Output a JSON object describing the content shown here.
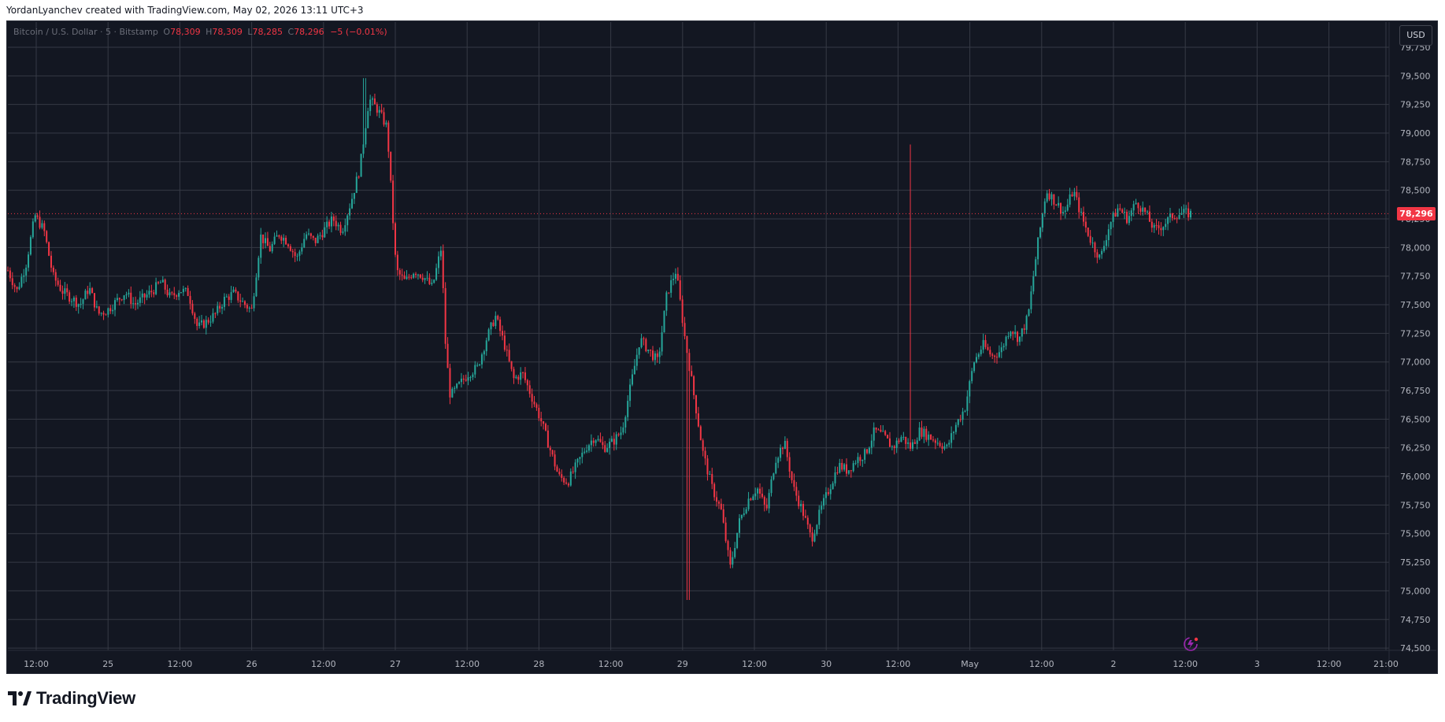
{
  "attribution": "YordanLyanchev created with TradingView.com, May 02, 2026 13:11 UTC+3",
  "legend": {
    "symbol": "Bitcoin / U.S. Dollar · 5 · Bitstamp",
    "o_label": "O",
    "o_value": "78,309",
    "h_label": "H",
    "h_value": "78,309",
    "l_label": "L",
    "l_value": "78,285",
    "c_label": "C",
    "c_value": "78,296",
    "change": "−5 (−0.01%)"
  },
  "currency": "USD",
  "last_price": "78,296",
  "brand": "TradingView",
  "colors": {
    "background": "#131722",
    "grid": "#363a45",
    "up": "#26a69a",
    "down": "#f23645",
    "axis_text": "#b2b5be"
  },
  "icons": [
    "tradingview-logo-icon",
    "replay-icon"
  ],
  "chart_data": {
    "type": "candlestick",
    "title": "Bitcoin / U.S. Dollar · 5 · Bitstamp",
    "interval_minutes": 5,
    "y_axis": {
      "ticks": [
        74500,
        74750,
        75000,
        75250,
        75500,
        75750,
        76000,
        76250,
        76500,
        76750,
        77000,
        77250,
        77500,
        77750,
        78000,
        78250,
        78500,
        78750,
        79000,
        79250,
        79500,
        79750
      ],
      "tick_labels": [
        "74,500",
        "74,750",
        "75,000",
        "75,250",
        "75,500",
        "75,750",
        "76,000",
        "76,250",
        "76,500",
        "76,750",
        "77,000",
        "77,250",
        "77,500",
        "77,750",
        "78,000",
        "78,250",
        "78,500",
        "78,750",
        "79,000",
        "79,250",
        "79,500",
        "79,750"
      ],
      "range": [
        74480,
        79970
      ]
    },
    "x_axis": {
      "tick_labels": [
        "12:00",
        "25",
        "12:00",
        "26",
        "12:00",
        "27",
        "12:00",
        "28",
        "12:00",
        "29",
        "12:00",
        "30",
        "12:00",
        "May",
        "12:00",
        "2",
        "12:00",
        "3",
        "12:00",
        "21:00"
      ],
      "range_label": "Apr 24 08:00 – May 3 22:00"
    },
    "last_price": 78296,
    "grid": true,
    "price_path": [
      [
        0,
        77800
      ],
      [
        2,
        77620
      ],
      [
        4,
        77850
      ],
      [
        6,
        78280
      ],
      [
        8,
        78150
      ],
      [
        10,
        77750
      ],
      [
        12,
        77620
      ],
      [
        14,
        77560
      ],
      [
        16,
        77500
      ],
      [
        18,
        77650
      ],
      [
        20,
        77420
      ],
      [
        22,
        77450
      ],
      [
        24,
        77530
      ],
      [
        26,
        77610
      ],
      [
        28,
        77500
      ],
      [
        30,
        77560
      ],
      [
        32,
        77620
      ],
      [
        34,
        77700
      ],
      [
        36,
        77560
      ],
      [
        38,
        77630
      ],
      [
        40,
        77600
      ],
      [
        42,
        77300
      ],
      [
        44,
        77350
      ],
      [
        46,
        77420
      ],
      [
        48,
        77550
      ],
      [
        50,
        77600
      ],
      [
        52,
        77520
      ],
      [
        54,
        77450
      ],
      [
        56,
        78100
      ],
      [
        58,
        77980
      ],
      [
        60,
        78120
      ],
      [
        62,
        78050
      ],
      [
        64,
        77900
      ],
      [
        66,
        78120
      ],
      [
        68,
        78050
      ],
      [
        70,
        78150
      ],
      [
        72,
        78250
      ],
      [
        74,
        78150
      ],
      [
        76,
        78400
      ],
      [
        78,
        78700
      ],
      [
        80,
        79300
      ],
      [
        82,
        79200
      ],
      [
        84,
        79050
      ],
      [
        86,
        77800
      ],
      [
        88,
        77700
      ],
      [
        90,
        77800
      ],
      [
        92,
        77750
      ],
      [
        94,
        77650
      ],
      [
        96,
        78000
      ],
      [
        97,
        77100
      ],
      [
        98,
        76700
      ],
      [
        100,
        76800
      ],
      [
        102,
        76900
      ],
      [
        104,
        76950
      ],
      [
        106,
        77200
      ],
      [
        108,
        77400
      ],
      [
        110,
        77150
      ],
      [
        112,
        76850
      ],
      [
        114,
        76900
      ],
      [
        116,
        76700
      ],
      [
        118,
        76500
      ],
      [
        120,
        76250
      ],
      [
        122,
        76000
      ],
      [
        124,
        75950
      ],
      [
        126,
        76100
      ],
      [
        128,
        76250
      ],
      [
        130,
        76350
      ],
      [
        132,
        76250
      ],
      [
        134,
        76300
      ],
      [
        136,
        76400
      ],
      [
        138,
        76800
      ],
      [
        140,
        77200
      ],
      [
        142,
        77100
      ],
      [
        144,
        77000
      ],
      [
        146,
        77600
      ],
      [
        148,
        77800
      ],
      [
        150,
        77200
      ],
      [
        152,
        76700
      ],
      [
        154,
        76200
      ],
      [
        156,
        75900
      ],
      [
        158,
        75700
      ],
      [
        160,
        75200
      ],
      [
        162,
        75600
      ],
      [
        164,
        75800
      ],
      [
        166,
        75900
      ],
      [
        168,
        75700
      ],
      [
        170,
        76150
      ],
      [
        172,
        76300
      ],
      [
        174,
        75900
      ],
      [
        176,
        75700
      ],
      [
        178,
        75450
      ],
      [
        180,
        75700
      ],
      [
        182,
        75900
      ],
      [
        184,
        76100
      ],
      [
        186,
        76050
      ],
      [
        188,
        76150
      ],
      [
        190,
        76200
      ],
      [
        192,
        76400
      ],
      [
        194,
        76350
      ],
      [
        196,
        76250
      ],
      [
        198,
        76350
      ],
      [
        200,
        76250
      ],
      [
        202,
        76400
      ],
      [
        204,
        76350
      ],
      [
        206,
        76300
      ],
      [
        208,
        76250
      ],
      [
        210,
        76450
      ],
      [
        212,
        76600
      ],
      [
        214,
        77000
      ],
      [
        216,
        77150
      ],
      [
        218,
        77050
      ],
      [
        220,
        77100
      ],
      [
        222,
        77300
      ],
      [
        224,
        77200
      ],
      [
        226,
        77400
      ],
      [
        228,
        78000
      ],
      [
        230,
        78500
      ],
      [
        232,
        78400
      ],
      [
        234,
        78300
      ],
      [
        236,
        78500
      ],
      [
        238,
        78250
      ],
      [
        240,
        78050
      ],
      [
        242,
        77900
      ],
      [
        244,
        78200
      ],
      [
        246,
        78350
      ],
      [
        248,
        78250
      ],
      [
        250,
        78400
      ],
      [
        252,
        78300
      ],
      [
        254,
        78150
      ],
      [
        256,
        78200
      ],
      [
        258,
        78280
      ],
      [
        260,
        78300
      ],
      [
        262,
        78296
      ]
    ],
    "annotations": [
      "wick spikes at 79,480 (Apr 27 ~06:00), 74,920 (Apr 30 ~06:00), 78,900 (May 1 ~15:00)"
    ]
  }
}
